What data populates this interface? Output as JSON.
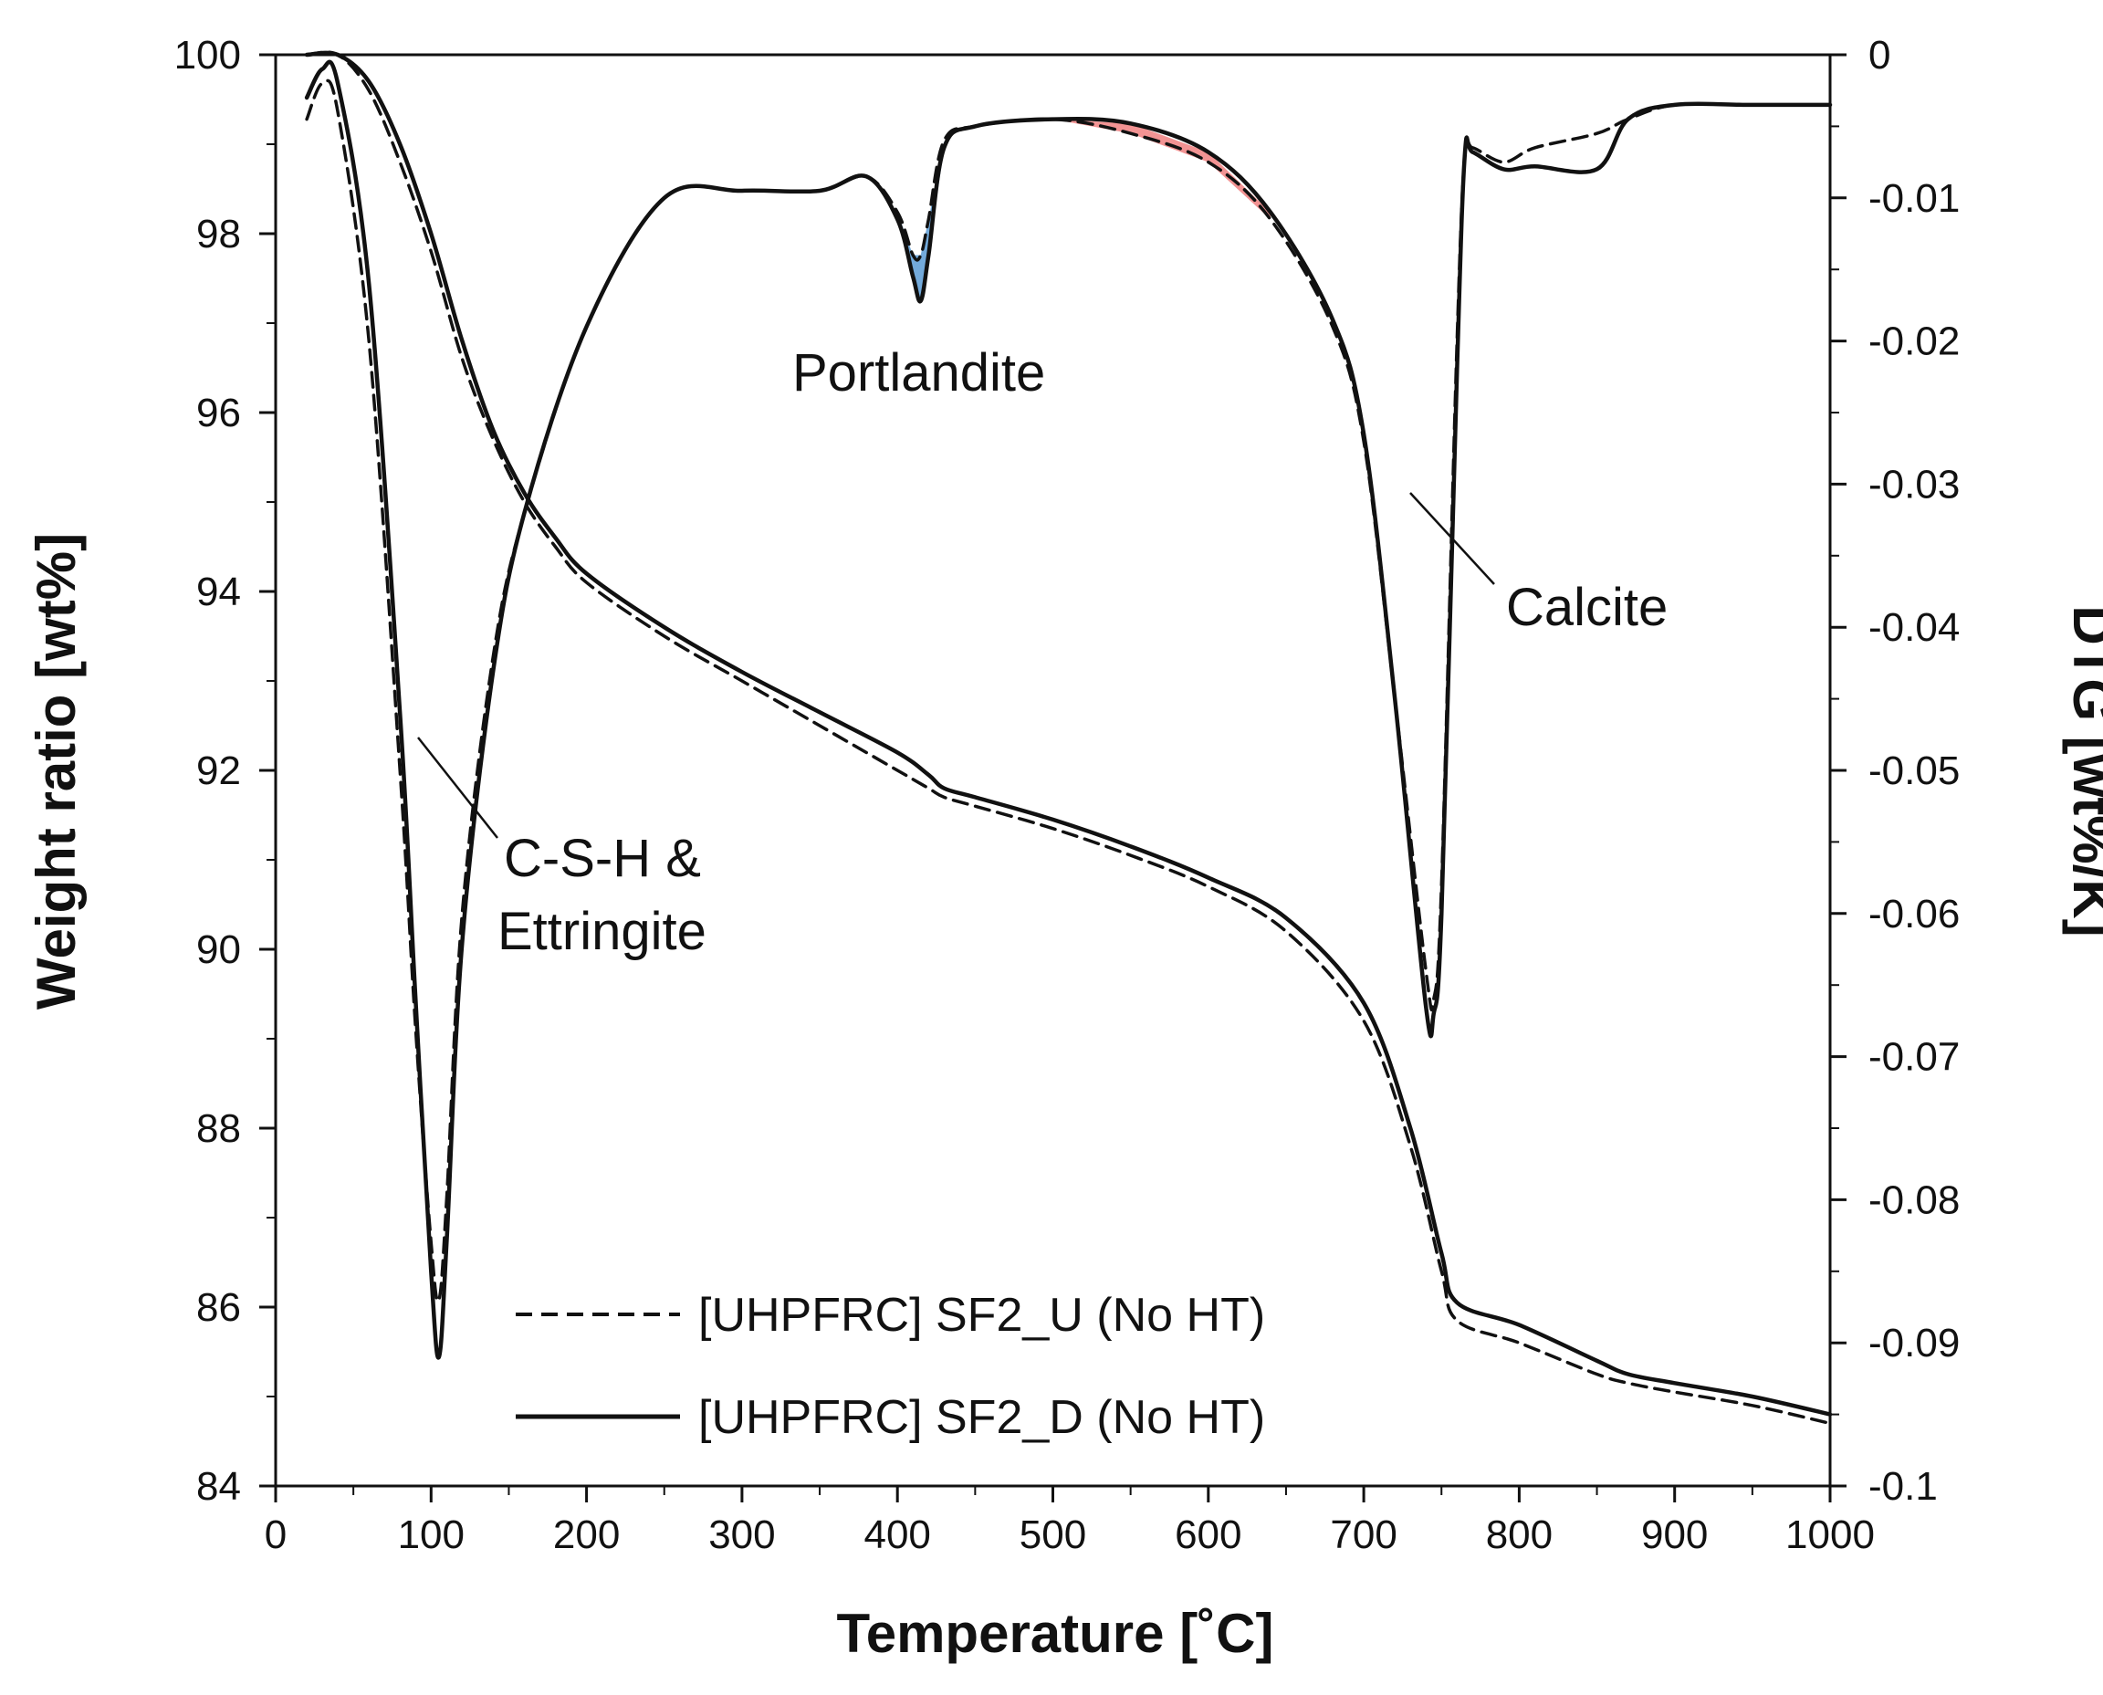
{
  "chart_data": {
    "type": "line",
    "title": "",
    "xlabel": "Temperature [˚C]",
    "ylabel_left": "Weight ratio [wt%]",
    "ylabel_right": "DTG [wt%/K]",
    "xlim": [
      0,
      1000
    ],
    "ylim_left": [
      84,
      100
    ],
    "ylim_right": [
      -0.1,
      0
    ],
    "x_ticks": [
      "0",
      "100",
      "200",
      "300",
      "400",
      "500",
      "600",
      "700",
      "800",
      "900",
      "1000"
    ],
    "y_left_ticks": [
      "84",
      "86",
      "88",
      "90",
      "92",
      "94",
      "96",
      "98",
      "100"
    ],
    "y_right_ticks": [
      "0",
      "-0.01",
      "-0.02",
      "-0.03",
      "-0.04",
      "-0.05",
      "-0.06",
      "-0.07",
      "-0.08",
      "-0.09",
      "-0.1"
    ],
    "legend": {
      "location": "lower-center",
      "entries": [
        {
          "label": "[UHPFRC] SF2_U (No HT)",
          "style": "dashed"
        },
        {
          "label": "[UHPFRC] SF2_D (No HT)",
          "style": "solid"
        }
      ]
    },
    "annotations": {
      "csh_line1": "C-S-H &",
      "csh_line2": "Ettringite",
      "portlandite": "Portlandite",
      "calcite": "Calcite"
    },
    "highlight_colors": {
      "portlandite_fill": "#5b9bd5",
      "carbonate_fill": "#f08080"
    },
    "series": [
      {
        "name": "[UHPFRC] SF2_U (No HT)",
        "kind": "TG",
        "axis": "left",
        "style": "dashed",
        "x": [
          20,
          40,
          60,
          80,
          100,
          120,
          140,
          160,
          180,
          200,
          250,
          300,
          350,
          400,
          420,
          430,
          450,
          500,
          550,
          600,
          650,
          700,
          730,
          750,
          760,
          800,
          850,
          870,
          900,
          950,
          1000
        ],
        "y": [
          100,
          100,
          99.6,
          98.8,
          97.8,
          96.6,
          95.7,
          95.0,
          94.5,
          94.1,
          93.5,
          93.0,
          92.5,
          92.0,
          91.8,
          91.7,
          91.6,
          91.35,
          91.05,
          90.7,
          90.2,
          89.2,
          87.8,
          86.4,
          85.85,
          85.6,
          85.25,
          85.15,
          85.05,
          84.9,
          84.7
        ]
      },
      {
        "name": "[UHPFRC] SF2_D (No HT)",
        "kind": "TG",
        "axis": "left",
        "style": "solid",
        "x": [
          20,
          40,
          60,
          80,
          100,
          120,
          140,
          160,
          180,
          200,
          250,
          300,
          350,
          400,
          420,
          430,
          450,
          500,
          550,
          600,
          650,
          700,
          730,
          750,
          760,
          800,
          850,
          870,
          900,
          950,
          1000
        ],
        "y": [
          100,
          100,
          99.7,
          99.0,
          98.0,
          96.8,
          95.8,
          95.1,
          94.6,
          94.2,
          93.6,
          93.1,
          92.65,
          92.2,
          91.95,
          91.8,
          91.7,
          91.45,
          91.15,
          90.8,
          90.35,
          89.4,
          88.0,
          86.6,
          86.05,
          85.8,
          85.4,
          85.25,
          85.15,
          85.0,
          84.8
        ]
      },
      {
        "name": "[UHPFRC] SF2_U (No HT)",
        "kind": "DTG",
        "axis": "right",
        "style": "dashed",
        "x": [
          20,
          30,
          40,
          60,
          80,
          90,
          100,
          105,
          110,
          120,
          140,
          160,
          200,
          250,
          300,
          350,
          380,
          400,
          410,
          415,
          420,
          430,
          450,
          500,
          550,
          600,
          640,
          680,
          700,
          720,
          740,
          745,
          750,
          760,
          765,
          770,
          790,
          810,
          850,
          870,
          900,
          950,
          1000
        ],
        "y": [
          -0.0045,
          -0.002,
          -0.004,
          -0.02,
          -0.05,
          -0.068,
          -0.083,
          -0.087,
          -0.08,
          -0.06,
          -0.042,
          -0.032,
          -0.019,
          -0.01,
          -0.0095,
          -0.0095,
          -0.0085,
          -0.011,
          -0.014,
          -0.014,
          -0.0115,
          -0.006,
          -0.005,
          -0.0045,
          -0.0055,
          -0.0075,
          -0.0115,
          -0.019,
          -0.027,
          -0.045,
          -0.064,
          -0.066,
          -0.058,
          -0.02,
          -0.007,
          -0.0065,
          -0.0075,
          -0.0065,
          -0.0055,
          -0.0045,
          -0.0035,
          -0.0035,
          -0.0035
        ]
      },
      {
        "name": "[UHPFRC] SF2_D (No HT)",
        "kind": "DTG",
        "axis": "right",
        "style": "solid",
        "x": [
          20,
          30,
          40,
          60,
          80,
          90,
          100,
          105,
          110,
          120,
          140,
          160,
          200,
          250,
          300,
          350,
          380,
          400,
          410,
          415,
          420,
          430,
          450,
          500,
          550,
          600,
          640,
          680,
          700,
          720,
          740,
          745,
          750,
          760,
          765,
          770,
          790,
          810,
          850,
          870,
          900,
          950,
          1000
        ],
        "y": [
          -0.003,
          -0.001,
          -0.002,
          -0.016,
          -0.046,
          -0.066,
          -0.085,
          -0.091,
          -0.083,
          -0.062,
          -0.043,
          -0.032,
          -0.019,
          -0.01,
          -0.0095,
          -0.0095,
          -0.0085,
          -0.0115,
          -0.0155,
          -0.0172,
          -0.014,
          -0.0065,
          -0.005,
          -0.0045,
          -0.0048,
          -0.0068,
          -0.011,
          -0.0185,
          -0.0265,
          -0.045,
          -0.0665,
          -0.067,
          -0.06,
          -0.022,
          -0.007,
          -0.0068,
          -0.008,
          -0.0078,
          -0.008,
          -0.0045,
          -0.0035,
          -0.0035,
          -0.0035
        ]
      }
    ]
  }
}
